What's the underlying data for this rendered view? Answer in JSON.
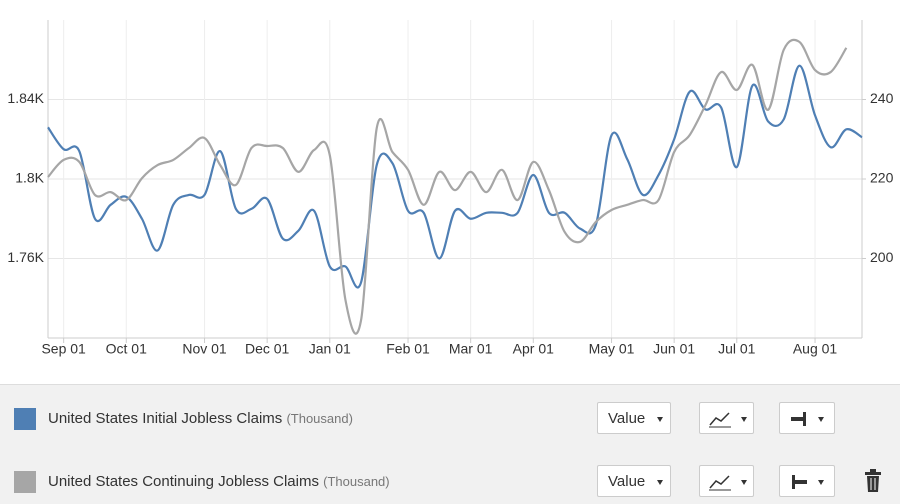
{
  "chart_data": {
    "type": "line",
    "categories": [
      null,
      "Sep 01",
      null,
      null,
      null,
      "Oct 01",
      null,
      null,
      null,
      null,
      "Nov 01",
      null,
      null,
      null,
      "Dec 01",
      null,
      null,
      null,
      "Jan 01",
      null,
      null,
      null,
      null,
      "Feb 01",
      null,
      null,
      null,
      "Mar 01",
      null,
      null,
      null,
      "Apr 01",
      null,
      null,
      null,
      null,
      "May 01",
      null,
      null,
      null,
      "Jun 01",
      null,
      null,
      null,
      "Jul 01",
      null,
      null,
      null,
      null,
      "Aug 01",
      null,
      null,
      null
    ],
    "series": [
      {
        "name": "United States Initial Jobless Claims",
        "unit": "(Thousand)",
        "mode": "Value",
        "color": "#4f7fb4",
        "axis": "y",
        "values": [
          1826,
          1815,
          1814,
          1780,
          1787,
          1791,
          1780,
          1764,
          1787,
          1792,
          1792,
          1814,
          1785,
          1785,
          1790,
          1770,
          1774,
          1784,
          1756,
          1756,
          1748,
          1807,
          1808,
          1784,
          1783,
          1760,
          1784,
          1780,
          1783,
          1783,
          1783,
          1802,
          1783,
          1783,
          1775,
          1777,
          1822,
          1810,
          1792,
          1802,
          1820,
          1844,
          1835,
          1836,
          1806,
          1847,
          1829,
          1830,
          1857,
          1832,
          1816,
          1825,
          1821
        ]
      },
      {
        "name": "United States Continuing Jobless Claims",
        "unit": "(Thousand)",
        "mode": "Value",
        "color": "#a6a6a6",
        "axis": "y2",
        "values": [
          220.5,
          224.8,
          224.3,
          216,
          216.7,
          214.7,
          220.2,
          223.5,
          224.8,
          227.8,
          230.3,
          223.5,
          218.5,
          227.8,
          228.3,
          227.8,
          221.8,
          227.3,
          226,
          189.6,
          184.5,
          232.8,
          226.8,
          222.3,
          213.5,
          221.8,
          217.2,
          221.8,
          216.7,
          222.3,
          214.7,
          224.3,
          217.2,
          206.7,
          204.2,
          209.2,
          212.2,
          213.5,
          214.7,
          214.7,
          226.8,
          231.1,
          238.6,
          246.9,
          242.4,
          248.7,
          237.4,
          252.5,
          254.5,
          247.4,
          246.9,
          253,
          null
        ]
      }
    ],
    "ylim": [
      1720,
      1880
    ],
    "yticks": [
      {
        "value": 1760,
        "label": "1.76K"
      },
      {
        "value": 1800,
        "label": "1.8K"
      },
      {
        "value": 1840,
        "label": "1.84K"
      }
    ],
    "y2lim": [
      180,
      260
    ],
    "y2ticks": [
      200,
      220,
      240
    ],
    "grid": true
  }
}
